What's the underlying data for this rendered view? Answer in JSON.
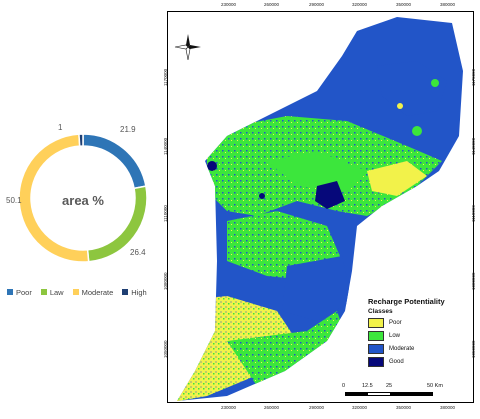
{
  "donut": {
    "title": "area %",
    "segments": [
      {
        "name": "Poor",
        "value": 21.9,
        "label": "21.9",
        "color": "#2E75B6"
      },
      {
        "name": "Law",
        "value": 26.4,
        "label": "26.4",
        "color": "#8DC63F"
      },
      {
        "name": "Moderate",
        "value": 50.1,
        "label": "50.1",
        "color": "#FFD05A"
      },
      {
        "name": "High",
        "value": 1,
        "label": "1",
        "color": "#1F3F73"
      }
    ]
  },
  "map": {
    "top_ticks": [
      "230000",
      "260000",
      "290000",
      "320000",
      "350000",
      "380000"
    ],
    "bottom_ticks": [
      "230000",
      "260000",
      "290000",
      "320000",
      "350000",
      "380000"
    ],
    "left_ticks": [
      "1170000",
      "1140000",
      "1110000",
      "1080000",
      "1050000"
    ],
    "right_ticks": [
      "1170000",
      "1140000",
      "1110000",
      "1080000",
      "1050000"
    ],
    "legend_title": "Recharge Potentiality",
    "legend_subtitle": "Classes",
    "classes": [
      {
        "label": "Poor",
        "color": "#F2F24A"
      },
      {
        "label": "Low",
        "color": "#3CE63C"
      },
      {
        "label": "Moderate",
        "color": "#2255C8"
      },
      {
        "label": "Good",
        "color": "#06087A"
      }
    ],
    "scale": {
      "labels": [
        "0",
        "12.5",
        "25",
        "50 Km"
      ]
    }
  }
}
